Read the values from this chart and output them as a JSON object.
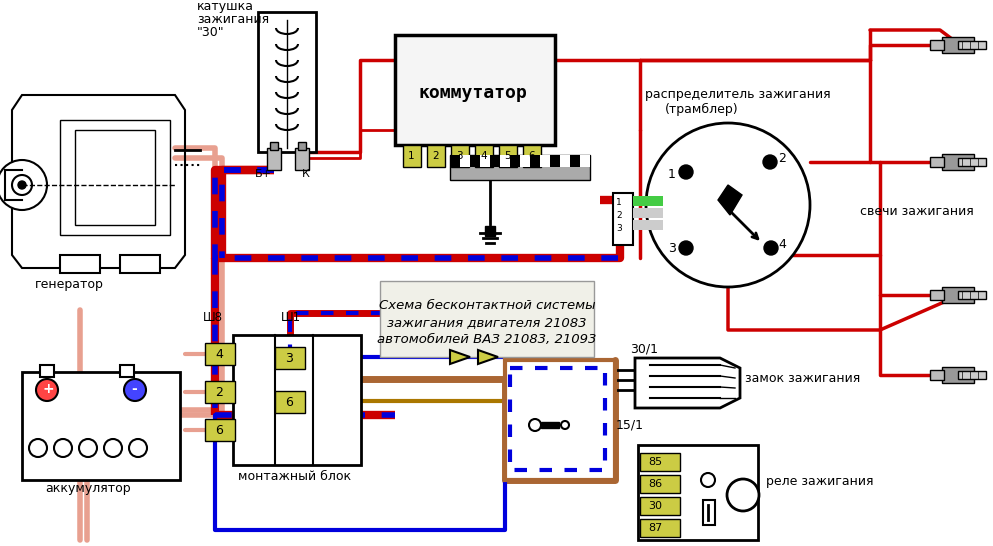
{
  "title_line1": "Схема бесконтактной системы",
  "title_line2": "зажигания двигателя 21083",
  "title_line3": "автомобилей ВАЗ 21083, 21093",
  "bg_color": "#ffffff",
  "wire_red": "#cc0000",
  "wire_salmon": "#e8a090",
  "wire_blue": "#0000dd",
  "wire_black": "#000000",
  "yellow_fill": "#cccc44",
  "label_bg": "#f0f0e8",
  "coil_label1": "катушка",
  "coil_label2": "зажигания",
  "coil_label3": "\"30\"",
  "commutator_label": "коммутатор",
  "distributor_label1": "распределитель зажигания",
  "distributor_label2": "(трамблер)",
  "sparks_label": "свечи зажигания",
  "generator_label": "генератор",
  "battery_label": "аккумулятор",
  "mounting_block_label": "монтажный блок",
  "ignition_lock_label": "замок зажигания",
  "ignition_relay_label": "реле зажигания",
  "sh8_label": "Ш8",
  "sh1_label": "Ш1",
  "bp_label": "Б+",
  "k_label": "К",
  "label_30_1": "30/1",
  "label_15_1": "15/1"
}
